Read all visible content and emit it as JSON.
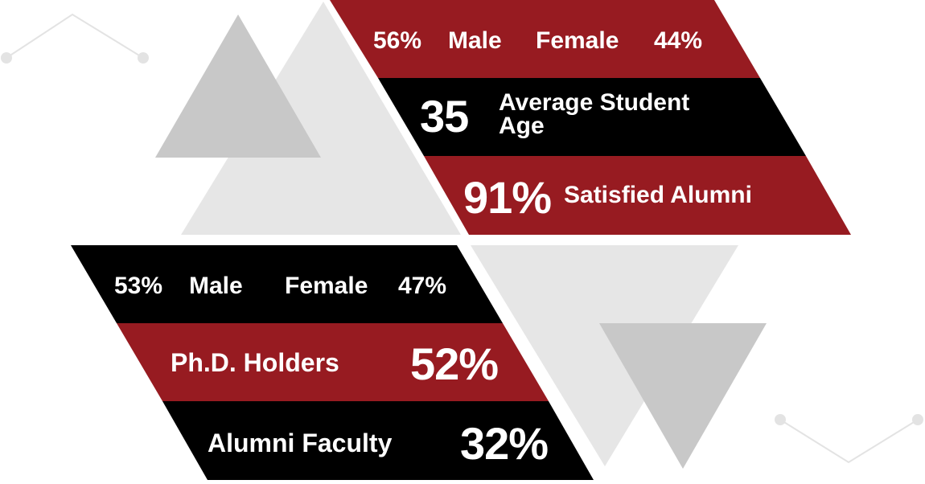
{
  "colors": {
    "red": "#971b21",
    "black": "#000000",
    "gray_dark": "#c8c8c8",
    "gray_light": "#e6e6e6",
    "line": "#e3e3e3",
    "text": "#ffffff"
  },
  "top": {
    "gender": {
      "male_pct": "56%",
      "male_label": "Male",
      "female_label": "Female",
      "female_pct": "44%"
    },
    "age": {
      "value": "35",
      "label_line1": "Average Student",
      "label_line2": "Age"
    },
    "alumni": {
      "value": "91%",
      "label": "Satisfied Alumni"
    }
  },
  "bottom": {
    "gender": {
      "male_pct": "53%",
      "male_label": "Male",
      "female_label": "Female",
      "female_pct": "47%"
    },
    "phd": {
      "label": "Ph.D. Holders",
      "value": "52%"
    },
    "faculty": {
      "label": "Alumni Faculty",
      "value": "32%"
    }
  }
}
